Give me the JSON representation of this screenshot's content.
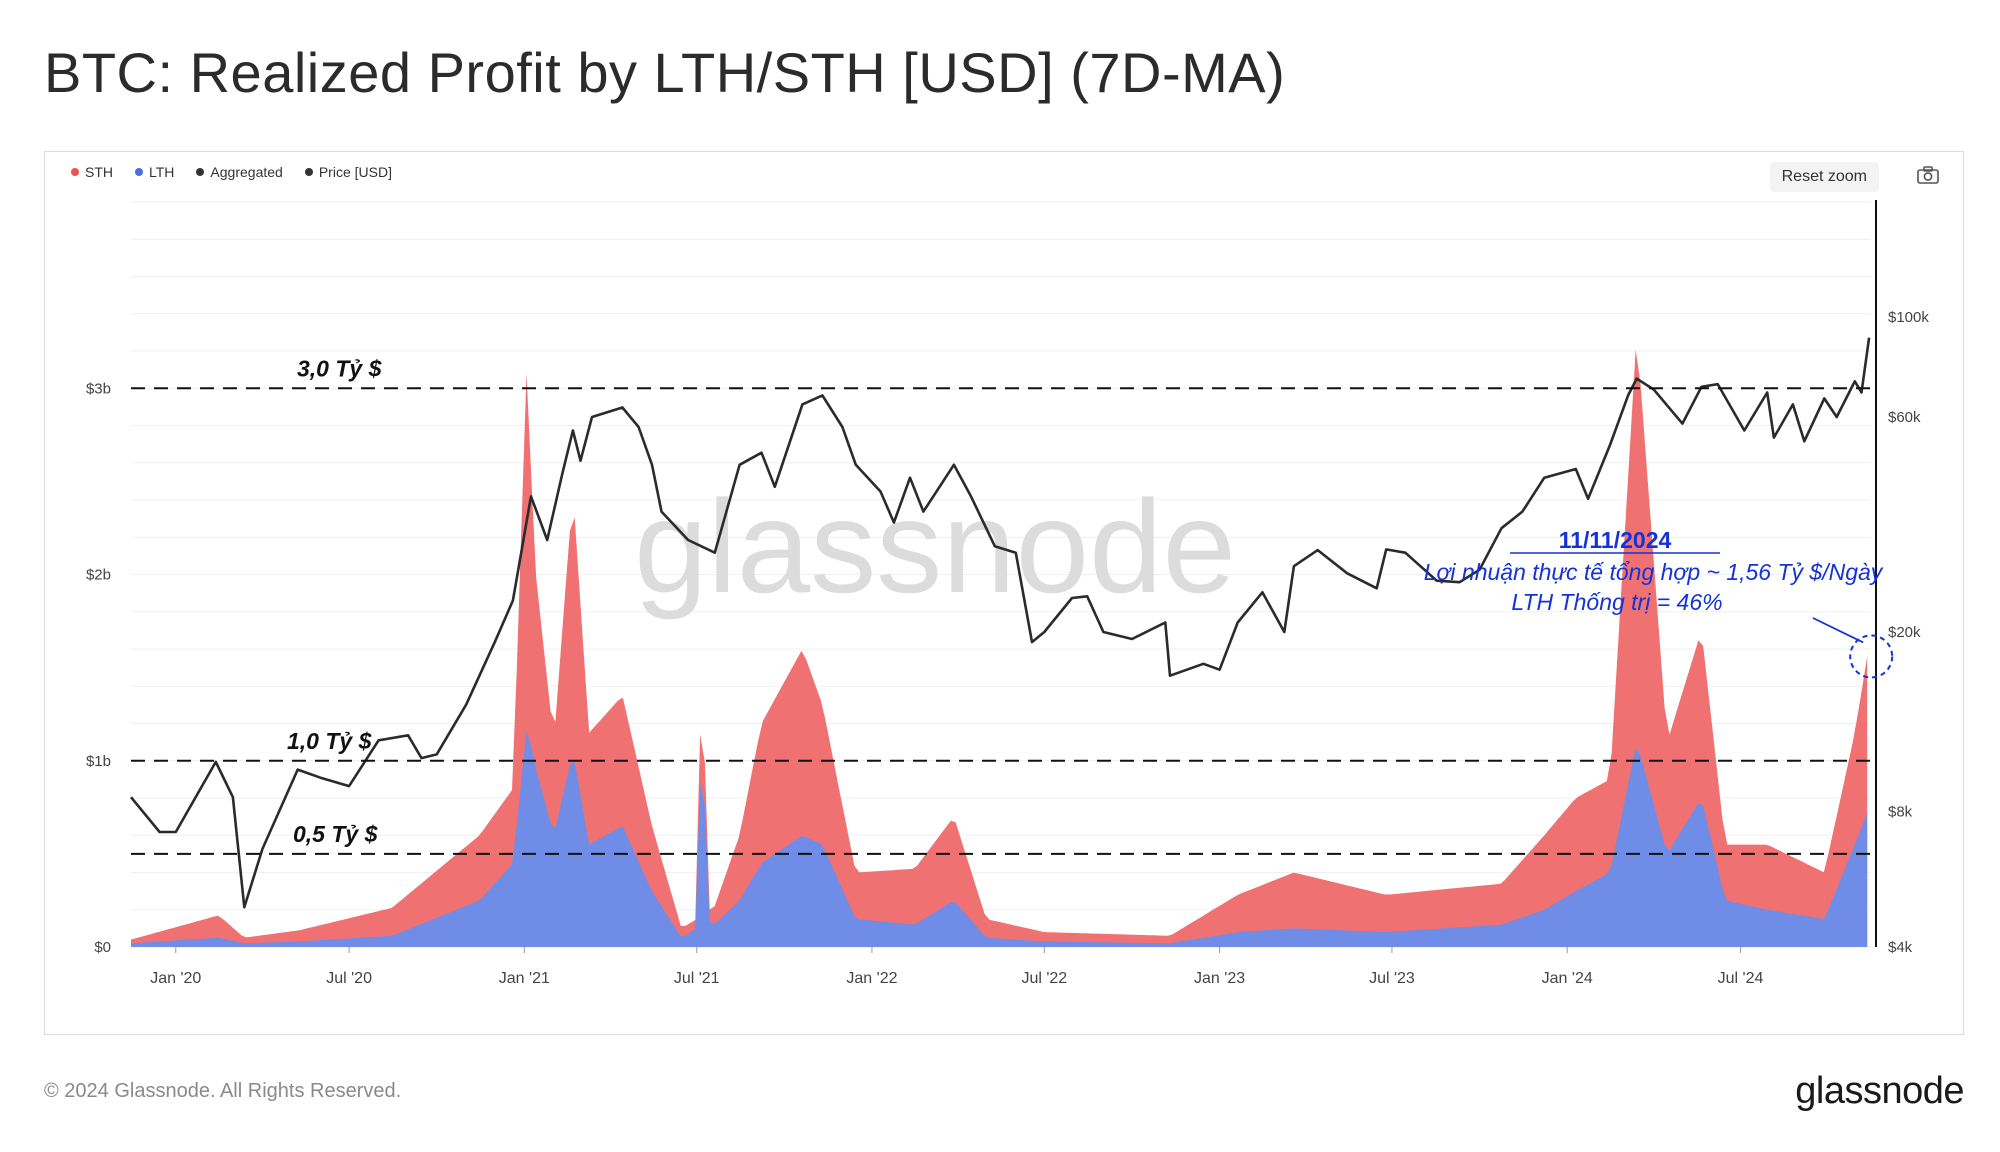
{
  "page": {
    "title": "BTC: Realized Profit by LTH/STH [USD] (7D-MA)",
    "copyright": "© 2024 Glassnode. All Rights Reserved.",
    "brand": "glassnode",
    "watermark": "glassnode"
  },
  "toolbar": {
    "reset_zoom_label": "Reset zoom",
    "camera_icon": "camera-icon"
  },
  "colors": {
    "sth": "#f07171",
    "lth": "#6f8de6",
    "aggregated": "#333333",
    "price": "#2b2b2b",
    "annotation": "#1432d8"
  },
  "chart_data": {
    "type": "area",
    "title": "BTC: Realized Profit by LTH/STH [USD] (7D-MA)",
    "legend": {
      "placement": "top-left",
      "entries": [
        {
          "name": "STH",
          "color": "#f07171"
        },
        {
          "name": "LTH",
          "color": "#4a6ee0"
        },
        {
          "name": "Aggregated",
          "color": "#333333"
        },
        {
          "name": "Price [USD]",
          "color": "#333333"
        }
      ]
    },
    "x_axis": {
      "range": [
        "2019-11-15",
        "2024-11-15"
      ],
      "ticks": [
        {
          "label": "Jan '20",
          "date": "2020-01-01"
        },
        {
          "label": "Jul '20",
          "date": "2020-07-01"
        },
        {
          "label": "Jan '21",
          "date": "2021-01-01"
        },
        {
          "label": "Jul '21",
          "date": "2021-07-01"
        },
        {
          "label": "Jan '22",
          "date": "2022-01-01"
        },
        {
          "label": "Jul '22",
          "date": "2022-07-01"
        },
        {
          "label": "Jan '23",
          "date": "2023-01-01"
        },
        {
          "label": "Jul '23",
          "date": "2023-07-01"
        },
        {
          "label": "Jan '24",
          "date": "2024-01-01"
        },
        {
          "label": "Jul '24",
          "date": "2024-07-01"
        }
      ]
    },
    "y_left": {
      "range": [
        0,
        4.0
      ],
      "unit": "billion USD",
      "ticks": [
        {
          "label": "$0",
          "value": 0
        },
        {
          "label": "$1b",
          "value": 1
        },
        {
          "label": "$2b",
          "value": 2
        },
        {
          "label": "$3b",
          "value": 3
        }
      ],
      "grid": true
    },
    "y_right": {
      "scale": "log",
      "range": [
        4000,
        180000
      ],
      "ticks": [
        {
          "label": "$4k",
          "value": 4000
        },
        {
          "label": "$8k",
          "value": 8000
        },
        {
          "label": "$20k",
          "value": 20000
        },
        {
          "label": "$60k",
          "value": 60000
        },
        {
          "label": "$100k",
          "value": 100000
        }
      ]
    },
    "reference_lines": [
      {
        "value": 3.0,
        "label": "3,0 Tỷ $"
      },
      {
        "value": 1.0,
        "label": "1,0 Tỷ $"
      },
      {
        "value": 0.5,
        "label": "0,5 Tỷ $"
      }
    ],
    "annotation": {
      "date_label": "11/11/2024",
      "line1": "Lợi nhuận thực tế tổng hợp ~ 1,56 Tỷ $/Ngày",
      "line2": "LTH Thống trị = 46%",
      "target_date": "2024-11-11",
      "target_value": 1.56
    },
    "series": [
      {
        "name": "Price [USD]",
        "axis": "right",
        "points": [
          [
            "2019-11-15",
            8600
          ],
          [
            "2019-12-15",
            7200
          ],
          [
            "2020-01-01",
            7200
          ],
          [
            "2020-02-12",
            10300
          ],
          [
            "2020-03-01",
            8600
          ],
          [
            "2020-03-13",
            4900
          ],
          [
            "2020-04-01",
            6600
          ],
          [
            "2020-05-08",
            9900
          ],
          [
            "2020-06-01",
            9500
          ],
          [
            "2020-07-01",
            9100
          ],
          [
            "2020-08-01",
            11500
          ],
          [
            "2020-09-01",
            11800
          ],
          [
            "2020-09-15",
            10500
          ],
          [
            "2020-10-01",
            10700
          ],
          [
            "2020-11-01",
            13800
          ],
          [
            "2020-12-01",
            19000
          ],
          [
            "2020-12-20",
            23500
          ],
          [
            "2021-01-08",
            40000
          ],
          [
            "2021-01-25",
            32000
          ],
          [
            "2021-02-10",
            45000
          ],
          [
            "2021-02-21",
            56000
          ],
          [
            "2021-03-01",
            48000
          ],
          [
            "2021-03-13",
            60000
          ],
          [
            "2021-04-14",
            63000
          ],
          [
            "2021-05-01",
            57000
          ],
          [
            "2021-05-15",
            47000
          ],
          [
            "2021-05-25",
            37000
          ],
          [
            "2021-06-22",
            32000
          ],
          [
            "2021-07-20",
            30000
          ],
          [
            "2021-08-15",
            47000
          ],
          [
            "2021-09-07",
            50000
          ],
          [
            "2021-09-21",
            42000
          ],
          [
            "2021-10-20",
            64000
          ],
          [
            "2021-11-10",
            67000
          ],
          [
            "2021-12-01",
            57000
          ],
          [
            "2021-12-15",
            47000
          ],
          [
            "2022-01-10",
            41000
          ],
          [
            "2022-01-24",
            35000
          ],
          [
            "2022-02-10",
            44000
          ],
          [
            "2022-02-24",
            37000
          ],
          [
            "2022-03-28",
            47000
          ],
          [
            "2022-04-15",
            40000
          ],
          [
            "2022-05-10",
            31000
          ],
          [
            "2022-06-01",
            30000
          ],
          [
            "2022-06-18",
            19000
          ],
          [
            "2022-07-01",
            20000
          ],
          [
            "2022-07-30",
            23800
          ],
          [
            "2022-08-15",
            24000
          ],
          [
            "2022-09-01",
            20000
          ],
          [
            "2022-10-01",
            19300
          ],
          [
            "2022-11-05",
            21000
          ],
          [
            "2022-11-10",
            16000
          ],
          [
            "2022-12-15",
            17000
          ],
          [
            "2023-01-01",
            16500
          ],
          [
            "2023-01-20",
            21000
          ],
          [
            "2023-02-15",
            24500
          ],
          [
            "2023-03-10",
            20000
          ],
          [
            "2023-03-20",
            28000
          ],
          [
            "2023-04-14",
            30400
          ],
          [
            "2023-05-15",
            27000
          ],
          [
            "2023-06-15",
            25000
          ],
          [
            "2023-06-25",
            30500
          ],
          [
            "2023-07-15",
            30000
          ],
          [
            "2023-08-17",
            26000
          ],
          [
            "2023-09-10",
            25800
          ],
          [
            "2023-10-01",
            27500
          ],
          [
            "2023-10-24",
            34000
          ],
          [
            "2023-11-15",
            37000
          ],
          [
            "2023-12-08",
            44000
          ],
          [
            "2024-01-10",
            46000
          ],
          [
            "2024-01-23",
            39500
          ],
          [
            "2024-02-15",
            52000
          ],
          [
            "2024-03-05",
            67000
          ],
          [
            "2024-03-14",
            73000
          ],
          [
            "2024-04-01",
            69000
          ],
          [
            "2024-05-01",
            58000
          ],
          [
            "2024-05-21",
            70000
          ],
          [
            "2024-06-07",
            71000
          ],
          [
            "2024-07-05",
            56000
          ],
          [
            "2024-07-29",
            68000
          ],
          [
            "2024-08-05",
            54000
          ],
          [
            "2024-08-25",
            64000
          ],
          [
            "2024-09-06",
            53000
          ],
          [
            "2024-09-27",
            66000
          ],
          [
            "2024-10-10",
            60000
          ],
          [
            "2024-10-29",
            72000
          ],
          [
            "2024-11-05",
            68000
          ],
          [
            "2024-11-13",
            90000
          ]
        ]
      },
      {
        "name": "LTH",
        "axis": "left",
        "unit": "billion USD",
        "points": [
          [
            "2019-11-15",
            0.02
          ],
          [
            "2020-02-15",
            0.05
          ],
          [
            "2020-03-13",
            0.02
          ],
          [
            "2020-05-10",
            0.03
          ],
          [
            "2020-08-15",
            0.06
          ],
          [
            "2020-11-15",
            0.25
          ],
          [
            "2020-12-20",
            0.45
          ],
          [
            "2021-01-04",
            1.2
          ],
          [
            "2021-01-11",
            1.0
          ],
          [
            "2021-02-01",
            0.6
          ],
          [
            "2021-02-21",
            1.05
          ],
          [
            "2021-03-10",
            0.55
          ],
          [
            "2021-04-14",
            0.65
          ],
          [
            "2021-05-15",
            0.3
          ],
          [
            "2021-06-15",
            0.05
          ],
          [
            "2021-07-01",
            0.1
          ],
          [
            "2021-07-06",
            1.2
          ],
          [
            "2021-07-15",
            0.1
          ],
          [
            "2021-08-15",
            0.25
          ],
          [
            "2021-09-07",
            0.45
          ],
          [
            "2021-10-20",
            0.6
          ],
          [
            "2021-11-10",
            0.55
          ],
          [
            "2021-12-15",
            0.15
          ],
          [
            "2022-02-15",
            0.12
          ],
          [
            "2022-03-28",
            0.25
          ],
          [
            "2022-05-01",
            0.05
          ],
          [
            "2022-07-01",
            0.03
          ],
          [
            "2022-11-10",
            0.02
          ],
          [
            "2023-01-20",
            0.08
          ],
          [
            "2023-03-20",
            0.1
          ],
          [
            "2023-06-25",
            0.08
          ],
          [
            "2023-10-24",
            0.12
          ],
          [
            "2023-12-08",
            0.2
          ],
          [
            "2024-01-10",
            0.3
          ],
          [
            "2024-02-15",
            0.4
          ],
          [
            "2024-03-14",
            1.1
          ],
          [
            "2024-04-15",
            0.5
          ],
          [
            "2024-05-21",
            0.8
          ],
          [
            "2024-06-15",
            0.25
          ],
          [
            "2024-07-29",
            0.2
          ],
          [
            "2024-09-27",
            0.15
          ],
          [
            "2024-10-29",
            0.55
          ],
          [
            "2024-11-11",
            0.72
          ]
        ]
      },
      {
        "name": "STH",
        "axis": "left",
        "unit": "billion USD",
        "points": [
          [
            "2019-11-15",
            0.02
          ],
          [
            "2020-02-15",
            0.12
          ],
          [
            "2020-03-13",
            0.03
          ],
          [
            "2020-05-10",
            0.06
          ],
          [
            "2020-08-15",
            0.15
          ],
          [
            "2020-11-15",
            0.35
          ],
          [
            "2020-12-20",
            0.4
          ],
          [
            "2021-01-04",
            2.0
          ],
          [
            "2021-01-11",
            1.1
          ],
          [
            "2021-02-01",
            0.5
          ],
          [
            "2021-02-21",
            1.4
          ],
          [
            "2021-03-10",
            0.6
          ],
          [
            "2021-04-14",
            0.7
          ],
          [
            "2021-05-15",
            0.35
          ],
          [
            "2021-06-15",
            0.05
          ],
          [
            "2021-07-01",
            0.05
          ],
          [
            "2021-07-06",
            0.35
          ],
          [
            "2021-07-15",
            0.05
          ],
          [
            "2021-08-15",
            0.35
          ],
          [
            "2021-09-07",
            0.75
          ],
          [
            "2021-10-20",
            1.0
          ],
          [
            "2021-11-10",
            0.75
          ],
          [
            "2021-12-15",
            0.25
          ],
          [
            "2022-02-15",
            0.3
          ],
          [
            "2022-03-28",
            0.45
          ],
          [
            "2022-05-01",
            0.1
          ],
          [
            "2022-07-01",
            0.05
          ],
          [
            "2022-11-10",
            0.04
          ],
          [
            "2023-01-20",
            0.2
          ],
          [
            "2023-03-20",
            0.3
          ],
          [
            "2023-06-25",
            0.2
          ],
          [
            "2023-10-24",
            0.22
          ],
          [
            "2023-12-08",
            0.4
          ],
          [
            "2024-01-10",
            0.5
          ],
          [
            "2024-02-15",
            0.5
          ],
          [
            "2024-03-14",
            2.2
          ],
          [
            "2024-04-15",
            0.6
          ],
          [
            "2024-05-21",
            0.9
          ],
          [
            "2024-06-15",
            0.3
          ],
          [
            "2024-07-29",
            0.35
          ],
          [
            "2024-09-27",
            0.25
          ],
          [
            "2024-10-29",
            0.6
          ],
          [
            "2024-11-11",
            0.84
          ]
        ]
      }
    ]
  }
}
